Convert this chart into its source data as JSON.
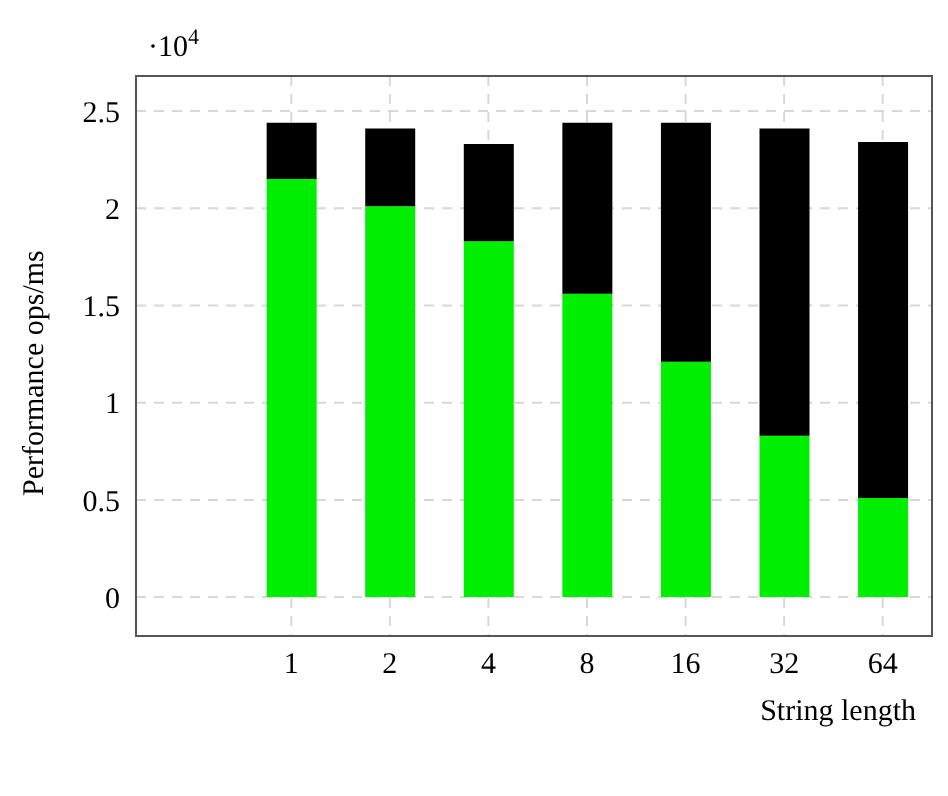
{
  "chart_data": {
    "type": "bar",
    "stacked": true,
    "xlabel": "String length",
    "ylabel": "Performance ops/ms",
    "annotations": [
      "·10$^{4}$"
    ],
    "categories": [
      "1",
      "2",
      "4",
      "8",
      "16",
      "32",
      "64"
    ],
    "series": [
      {
        "color": "#00ee00",
        "values": [
          2.15,
          2.01,
          1.83,
          1.56,
          1.21,
          0.83,
          0.51
        ]
      },
      {
        "color": "#000000",
        "values": [
          0.29,
          0.4,
          0.5,
          0.88,
          1.23,
          1.58,
          1.83
        ]
      }
    ],
    "ylim": [
      -0.2,
      2.68
    ],
    "yticks": [
      0,
      0.5,
      1,
      1.5,
      2,
      2.5
    ],
    "grid": true,
    "legend": false
  }
}
